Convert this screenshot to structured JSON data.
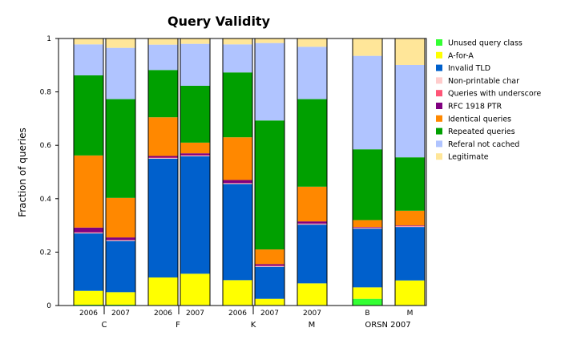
{
  "chart_data": {
    "type": "bar",
    "stacked": true,
    "title": "Query Validity",
    "ylabel": "Fraction of queries",
    "xlabel": "",
    "ylim": [
      0,
      1
    ],
    "yticks": [
      0,
      0.2,
      0.4,
      0.6,
      0.8,
      1
    ],
    "ytick_labels": [
      "0",
      "0.2",
      "0.4",
      "0.6",
      "0.8",
      "1"
    ],
    "legend_position": "right",
    "groups": [
      "C",
      "F",
      "K",
      "M",
      "ORSN 2007"
    ],
    "bars": [
      {
        "label": "2006",
        "group": "C"
      },
      {
        "label": "2007",
        "group": "C"
      },
      {
        "label": "2006",
        "group": "F"
      },
      {
        "label": "2007",
        "group": "F"
      },
      {
        "label": "2006",
        "group": "K"
      },
      {
        "label": "2007",
        "group": "K"
      },
      {
        "label": "2007",
        "group": "M"
      },
      {
        "label": "B",
        "group": "ORSN 2007"
      },
      {
        "label": "M",
        "group": "ORSN 2007"
      }
    ],
    "series": [
      {
        "name": "Unused query class",
        "color": "#33ff33",
        "values": [
          0.003,
          0.003,
          0.002,
          0.002,
          0.002,
          0.002,
          0.002,
          0.025,
          0.002
        ]
      },
      {
        "name": "A-for-A",
        "color": "#ffff00",
        "values": [
          0.052,
          0.047,
          0.103,
          0.117,
          0.093,
          0.023,
          0.081,
          0.043,
          0.092
        ]
      },
      {
        "name": "Invalid TLD",
        "color": "#0060cc",
        "values": [
          0.215,
          0.192,
          0.445,
          0.44,
          0.36,
          0.12,
          0.22,
          0.22,
          0.2
        ]
      },
      {
        "name": "Non-printable char",
        "color": "#ffcccc",
        "values": [
          0.002,
          0.002,
          0.002,
          0.002,
          0.002,
          0.002,
          0.002,
          0.002,
          0.002
        ]
      },
      {
        "name": "Queries with underscore",
        "color": "#ff5577",
        "values": [
          0.002,
          0.002,
          0.002,
          0.002,
          0.002,
          0.002,
          0.002,
          0.002,
          0.002
        ]
      },
      {
        "name": "RFC 1918 PTR",
        "color": "#800080",
        "values": [
          0.018,
          0.009,
          0.006,
          0.007,
          0.011,
          0.006,
          0.008,
          0.002,
          0.002
        ]
      },
      {
        "name": "Identical queries",
        "color": "#ff8800",
        "values": [
          0.27,
          0.148,
          0.145,
          0.04,
          0.16,
          0.055,
          0.13,
          0.026,
          0.055
        ]
      },
      {
        "name": "Repeated queries",
        "color": "#00a000",
        "values": [
          0.3,
          0.37,
          0.177,
          0.213,
          0.243,
          0.483,
          0.328,
          0.265,
          0.2
        ]
      },
      {
        "name": "Referal not cached",
        "color": "#b0c4ff",
        "values": [
          0.116,
          0.192,
          0.095,
          0.157,
          0.105,
          0.29,
          0.196,
          0.35,
          0.346
        ]
      },
      {
        "name": "Legitimate",
        "color": "#ffe699",
        "values": [
          0.022,
          0.035,
          0.023,
          0.02,
          0.022,
          0.017,
          0.031,
          0.065,
          0.099
        ]
      }
    ]
  }
}
